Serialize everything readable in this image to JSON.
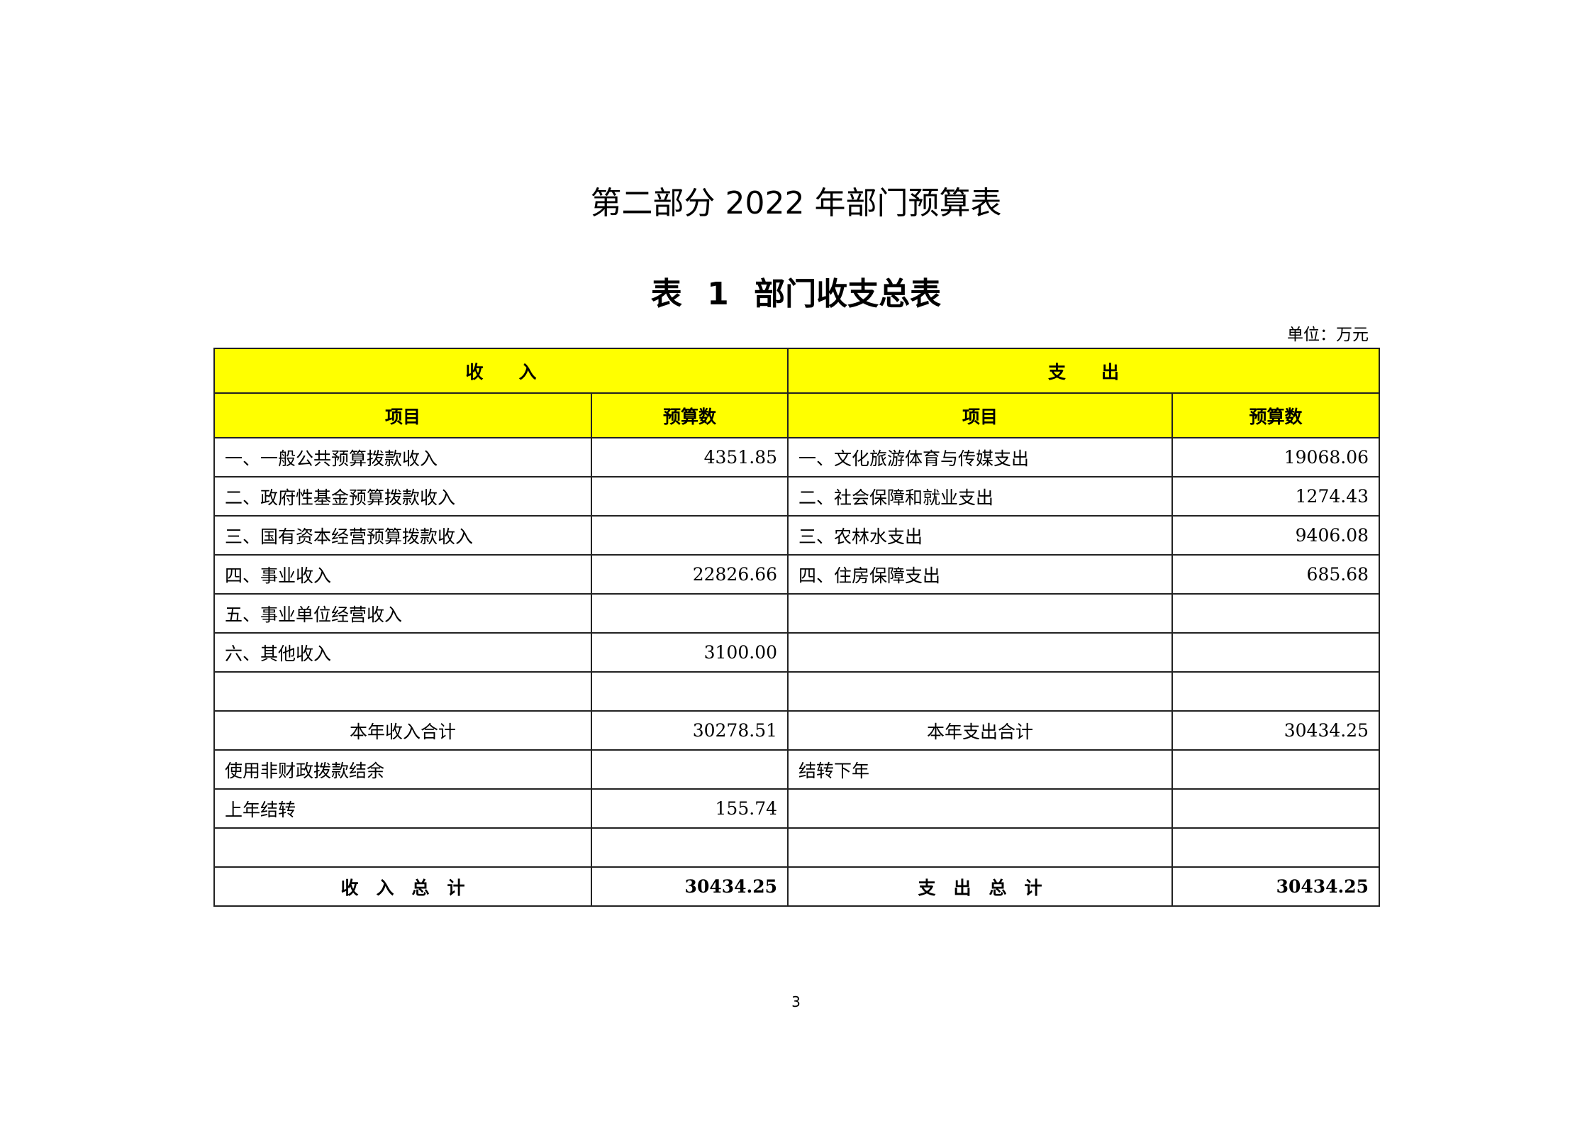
{
  "title": "第二部分 2022 年部门预算表",
  "subtitle": "表 1  部门收支总表",
  "unit": "单位：万元",
  "header": {
    "income": "收　　入",
    "expense": "支　　出",
    "item": "项目",
    "budget": "预算数"
  },
  "rows": [
    {
      "in_item": "一、一般公共预算拨款收入",
      "in_val": "4351.85",
      "out_item": "一、文化旅游体育与传媒支出",
      "out_val": "19068.06"
    },
    {
      "in_item": "二、政府性基金预算拨款收入",
      "in_val": "",
      "out_item": "二、社会保障和就业支出",
      "out_val": "1274.43"
    },
    {
      "in_item": "三、国有资本经营预算拨款收入",
      "in_val": "",
      "out_item": "三、农林水支出",
      "out_val": "9406.08"
    },
    {
      "in_item": "四、事业收入",
      "in_val": "22826.66",
      "out_item": "四、住房保障支出",
      "out_val": "685.68"
    },
    {
      "in_item": "五、事业单位经营收入",
      "in_val": "",
      "out_item": "",
      "out_val": ""
    },
    {
      "in_item": "六、其他收入",
      "in_val": "3100.00",
      "out_item": "",
      "out_val": ""
    },
    {
      "in_item": "",
      "in_val": "",
      "out_item": "",
      "out_val": ""
    },
    {
      "in_item": "本年收入合计",
      "in_val": "30278.51",
      "out_item": "本年支出合计",
      "out_val": "30434.25"
    },
    {
      "in_item": "使用非财政拨款结余",
      "in_val": "",
      "out_item": "结转下年",
      "out_val": ""
    },
    {
      "in_item": "上年结转",
      "in_val": "155.74",
      "out_item": "",
      "out_val": ""
    },
    {
      "in_item": "",
      "in_val": "",
      "out_item": "",
      "out_val": ""
    }
  ],
  "total": {
    "in_item": "收　入　总　计",
    "in_val": "30434.25",
    "out_item": "支　出　总　计",
    "out_val": "30434.25"
  },
  "page_number": "3"
}
